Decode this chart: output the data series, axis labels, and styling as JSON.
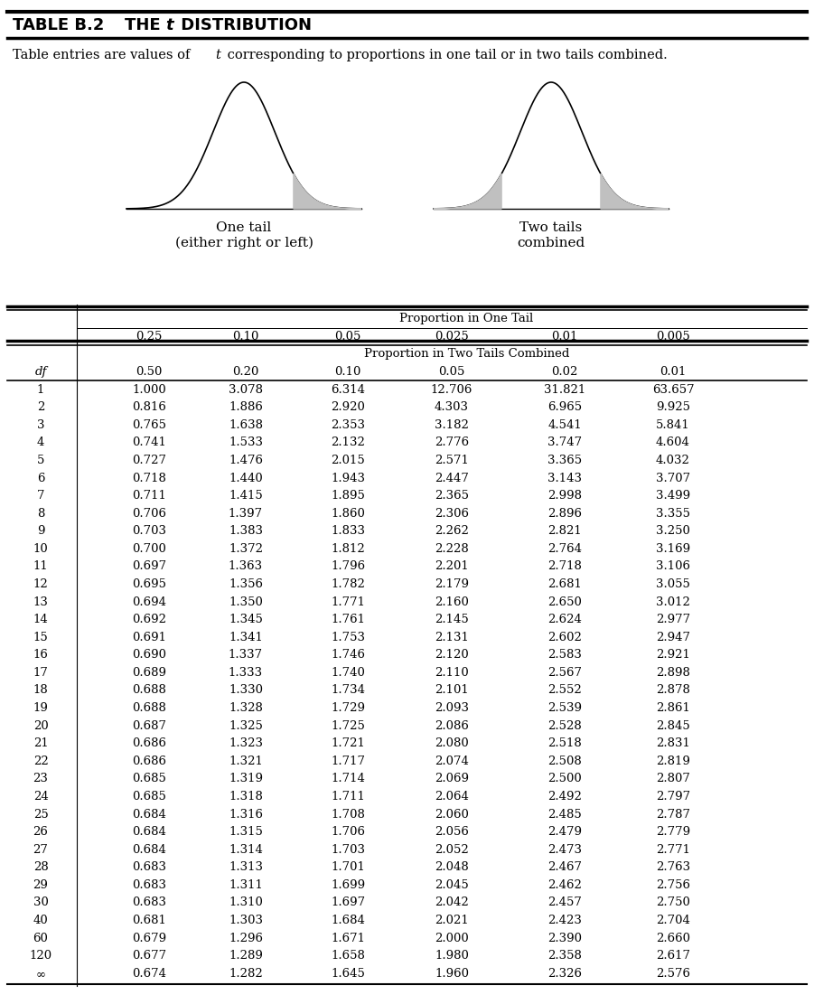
{
  "title_normal": "TABLE B.2",
  "title_italic": "t",
  "title_rest": "DISTRIBUTION",
  "title_the": "THE",
  "subtitle_before": "Table entries are values of ",
  "subtitle_italic": "t",
  "subtitle_after": " corresponding to proportions in one tail or in two tails combined.",
  "one_tail_line1": "One tail",
  "one_tail_line2": "(either right or left)",
  "two_tails_line1": "Two tails",
  "two_tails_line2": "combined",
  "col_header1": "Proportion in One Tail",
  "col_header2": "Proportion in Two Tails Combined",
  "one_tail_props": [
    "0.25",
    "0.10",
    "0.05",
    "0.025",
    "0.01",
    "0.005"
  ],
  "two_tail_props": [
    "0.50",
    "0.20",
    "0.10",
    "0.05",
    "0.02",
    "0.01"
  ],
  "df_label": "df",
  "df_values": [
    "1",
    "2",
    "3",
    "4",
    "5",
    "6",
    "7",
    "8",
    "9",
    "10",
    "11",
    "12",
    "13",
    "14",
    "15",
    "16",
    "17",
    "18",
    "19",
    "20",
    "21",
    "22",
    "23",
    "24",
    "25",
    "26",
    "27",
    "28",
    "29",
    "30",
    "40",
    "60",
    "120",
    "∞"
  ],
  "table_data": [
    [
      "1.000",
      "3.078",
      "6.314",
      "12.706",
      "31.821",
      "63.657"
    ],
    [
      "0.816",
      "1.886",
      "2.920",
      "4.303",
      "6.965",
      "9.925"
    ],
    [
      "0.765",
      "1.638",
      "2.353",
      "3.182",
      "4.541",
      "5.841"
    ],
    [
      "0.741",
      "1.533",
      "2.132",
      "2.776",
      "3.747",
      "4.604"
    ],
    [
      "0.727",
      "1.476",
      "2.015",
      "2.571",
      "3.365",
      "4.032"
    ],
    [
      "0.718",
      "1.440",
      "1.943",
      "2.447",
      "3.143",
      "3.707"
    ],
    [
      "0.711",
      "1.415",
      "1.895",
      "2.365",
      "2.998",
      "3.499"
    ],
    [
      "0.706",
      "1.397",
      "1.860",
      "2.306",
      "2.896",
      "3.355"
    ],
    [
      "0.703",
      "1.383",
      "1.833",
      "2.262",
      "2.821",
      "3.250"
    ],
    [
      "0.700",
      "1.372",
      "1.812",
      "2.228",
      "2.764",
      "3.169"
    ],
    [
      "0.697",
      "1.363",
      "1.796",
      "2.201",
      "2.718",
      "3.106"
    ],
    [
      "0.695",
      "1.356",
      "1.782",
      "2.179",
      "2.681",
      "3.055"
    ],
    [
      "0.694",
      "1.350",
      "1.771",
      "2.160",
      "2.650",
      "3.012"
    ],
    [
      "0.692",
      "1.345",
      "1.761",
      "2.145",
      "2.624",
      "2.977"
    ],
    [
      "0.691",
      "1.341",
      "1.753",
      "2.131",
      "2.602",
      "2.947"
    ],
    [
      "0.690",
      "1.337",
      "1.746",
      "2.120",
      "2.583",
      "2.921"
    ],
    [
      "0.689",
      "1.333",
      "1.740",
      "2.110",
      "2.567",
      "2.898"
    ],
    [
      "0.688",
      "1.330",
      "1.734",
      "2.101",
      "2.552",
      "2.878"
    ],
    [
      "0.688",
      "1.328",
      "1.729",
      "2.093",
      "2.539",
      "2.861"
    ],
    [
      "0.687",
      "1.325",
      "1.725",
      "2.086",
      "2.528",
      "2.845"
    ],
    [
      "0.686",
      "1.323",
      "1.721",
      "2.080",
      "2.518",
      "2.831"
    ],
    [
      "0.686",
      "1.321",
      "1.717",
      "2.074",
      "2.508",
      "2.819"
    ],
    [
      "0.685",
      "1.319",
      "1.714",
      "2.069",
      "2.500",
      "2.807"
    ],
    [
      "0.685",
      "1.318",
      "1.711",
      "2.064",
      "2.492",
      "2.797"
    ],
    [
      "0.684",
      "1.316",
      "1.708",
      "2.060",
      "2.485",
      "2.787"
    ],
    [
      "0.684",
      "1.315",
      "1.706",
      "2.056",
      "2.479",
      "2.779"
    ],
    [
      "0.684",
      "1.314",
      "1.703",
      "2.052",
      "2.473",
      "2.771"
    ],
    [
      "0.683",
      "1.313",
      "1.701",
      "2.048",
      "2.467",
      "2.763"
    ],
    [
      "0.683",
      "1.311",
      "1.699",
      "2.045",
      "2.462",
      "2.756"
    ],
    [
      "0.683",
      "1.310",
      "1.697",
      "2.042",
      "2.457",
      "2.750"
    ],
    [
      "0.681",
      "1.303",
      "1.684",
      "2.021",
      "2.423",
      "2.704"
    ],
    [
      "0.679",
      "1.296",
      "1.671",
      "2.000",
      "2.390",
      "2.660"
    ],
    [
      "0.677",
      "1.289",
      "1.658",
      "1.980",
      "2.358",
      "2.617"
    ],
    [
      "0.674",
      "1.282",
      "1.645",
      "1.960",
      "2.326",
      "2.576"
    ]
  ],
  "bell_shade_color": "#c0c0c0",
  "bg_color": "#ffffff",
  "line_color": "#000000"
}
